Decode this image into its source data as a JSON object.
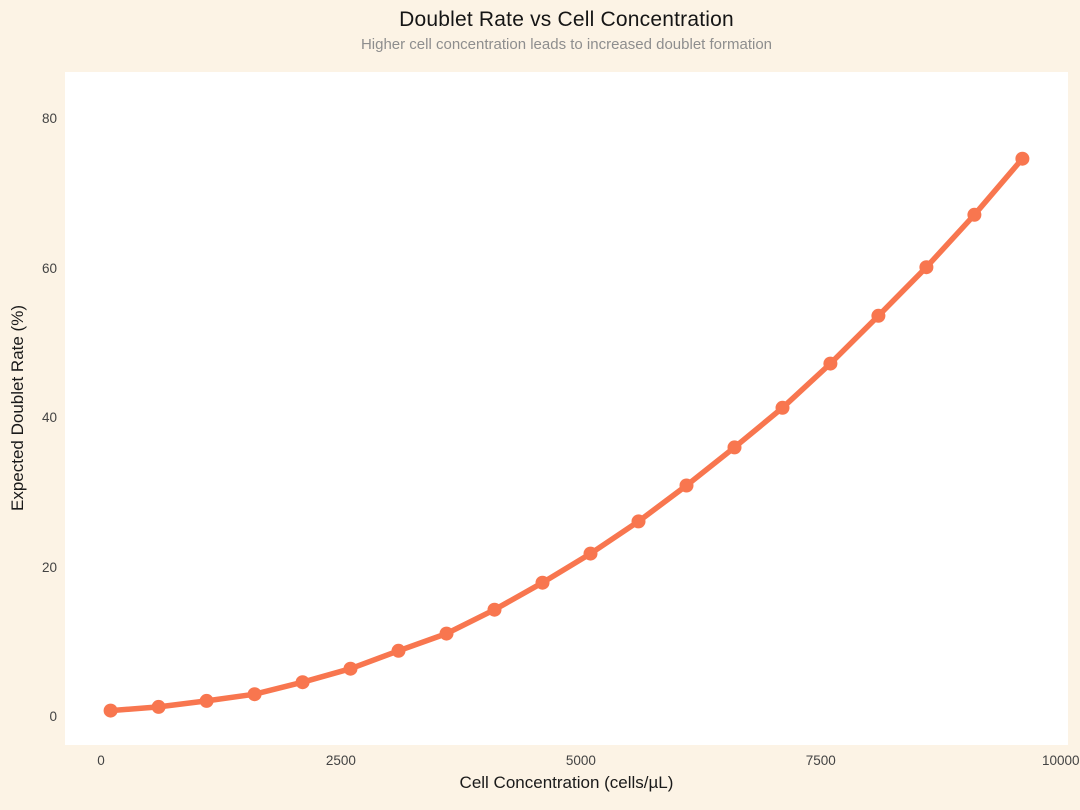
{
  "chart_data": {
    "type": "line",
    "title": "Doublet Rate vs Cell Concentration",
    "subtitle": "Higher cell concentration leads to increased doublet formation",
    "xlabel": "Cell Concentration (cells/µL)",
    "ylabel": "Expected Doublet Rate (%)",
    "series": [
      {
        "name": "expected-doublet-rate",
        "x": [
          100,
          600,
          1100,
          1600,
          2100,
          2600,
          3100,
          3600,
          4100,
          4600,
          5100,
          5600,
          6100,
          6600,
          7100,
          7600,
          8100,
          8600,
          9100,
          9600
        ],
        "y": [
          0.9,
          1.4,
          2.2,
          3.1,
          4.7,
          6.5,
          8.9,
          11.2,
          14.4,
          18.0,
          21.9,
          26.2,
          31.0,
          36.1,
          41.4,
          47.3,
          53.7,
          60.2,
          67.2,
          74.7
        ]
      }
    ],
    "x_ticks": [
      0,
      2500,
      5000,
      7500,
      10000
    ],
    "y_ticks": [
      0,
      20,
      40,
      60,
      80
    ],
    "xlim": [
      -375,
      10075
    ],
    "ylim": [
      -3.7,
      86.3
    ],
    "grid": false,
    "legend": "none",
    "marker": "circle",
    "colors": {
      "line": "#F8764F",
      "figure_background": "#FCF3E5",
      "panel_background": "#FFFFFF",
      "title": "#151515",
      "subtitle": "#8E8E8E",
      "axis_title": "#1A1A1A",
      "tick_label": "#434343"
    }
  }
}
